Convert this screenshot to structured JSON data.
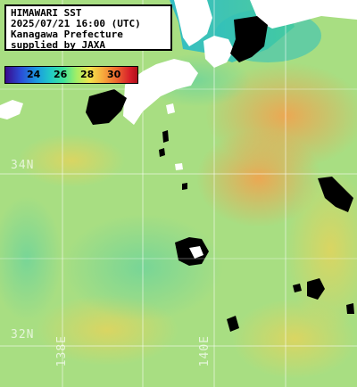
{
  "info": {
    "line1": "HIMAWARI SST",
    "line2": "2025/07/21 16:00 (UTC)",
    "line3": "Kanagawa Prefecture",
    "line4": "supplied by JAXA"
  },
  "colorbar": {
    "ticks": [
      "24",
      "26",
      "28",
      "30"
    ]
  },
  "grid_labels": {
    "lat_34": "34N",
    "lat_32": "32N",
    "lon_138": "138E",
    "lon_140": "140E"
  },
  "colors": {
    "land": "#ffffff",
    "cloud": "#000000",
    "sea_base": "#a8e08a",
    "warm": "#f2b45a",
    "grid": "#ffffff"
  }
}
